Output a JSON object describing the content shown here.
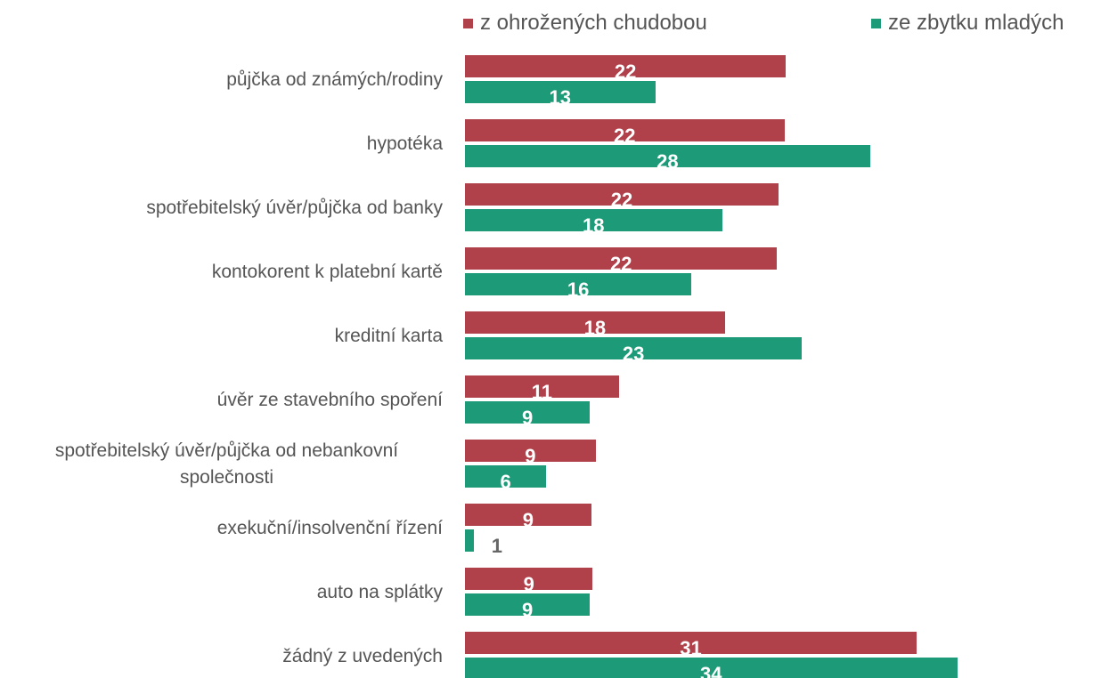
{
  "chart_data": {
    "type": "bar",
    "orientation": "horizontal",
    "categories": [
      "půjčka od známých/rodiny",
      "hypotéka",
      "spotřebitelský úvěr/půjčka od banky",
      "kontokorent k platební kartě",
      "kreditní karta",
      "úvěr ze stavebního spoření",
      "spotřebitelský úvěr/půjčka od nebankovní společnosti",
      "exekuční/insolvenční řízení",
      "auto na splátky",
      "žádný z uvedených"
    ],
    "series": [
      {
        "name": "z ohrožených chudobou",
        "color": "#b0404a",
        "values": [
          22.1,
          22.0,
          21.6,
          21.5,
          17.9,
          10.6,
          9.0,
          8.7,
          8.8,
          31.1
        ],
        "value_labels": [
          "22",
          "22",
          "22",
          "22",
          "18",
          "11",
          "9",
          "9",
          "9",
          "31"
        ]
      },
      {
        "name": "ze zbytku mladých",
        "color": "#1d9a78",
        "values": [
          13.1,
          27.9,
          17.7,
          15.6,
          23.2,
          8.6,
          5.6,
          0.6,
          8.6,
          33.9
        ],
        "value_labels": [
          "13",
          "28",
          "18",
          "16",
          "23",
          "9",
          "6",
          "1",
          "9",
          "34"
        ]
      }
    ],
    "legend": "top"
  }
}
